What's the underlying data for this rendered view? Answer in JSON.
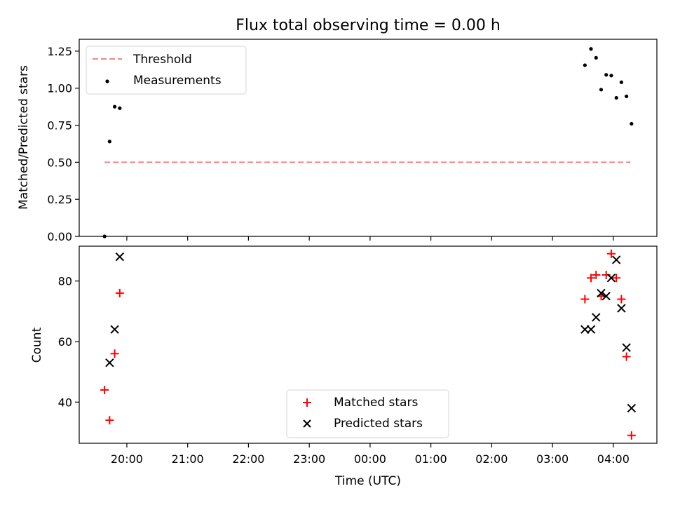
{
  "title": "Flux total observing time = 0.00 h",
  "chart_data": [
    {
      "type": "scatter",
      "panel": "top",
      "title": "Flux total observing time = 0.00 h",
      "xlabel": "",
      "ylabel": "Matched/Predicted stars",
      "xlim": [
        "19:13",
        "04:43"
      ],
      "ylim": [
        0.0,
        1.33
      ],
      "yticks": [
        "0.00",
        "0.25",
        "0.50",
        "0.75",
        "1.00",
        "1.25"
      ],
      "legend_position": "top-left",
      "series": [
        {
          "name": "Threshold",
          "kind": "line",
          "style": "dashed",
          "color": "#ff7f7f",
          "x": [
            "19:38",
            "04:17"
          ],
          "y": [
            0.5,
            0.5
          ]
        },
        {
          "name": "Measurements",
          "kind": "scatter",
          "marker": "dot",
          "color": "#000000",
          "x": [
            "19:38",
            "19:43",
            "19:48",
            "19:53",
            "03:32",
            "03:38",
            "03:43",
            "03:48",
            "03:53",
            "03:58",
            "04:03",
            "04:08",
            "04:13",
            "04:18"
          ],
          "y": [
            0.0,
            0.64,
            0.875,
            0.865,
            1.155,
            1.265,
            1.205,
            0.99,
            1.09,
            1.085,
            0.935,
            1.04,
            0.945,
            0.76
          ]
        }
      ]
    },
    {
      "type": "scatter",
      "panel": "bottom",
      "title": "",
      "xlabel": "Time (UTC)",
      "ylabel": "Count",
      "xlim": [
        "19:13",
        "04:43"
      ],
      "ylim": [
        26.4,
        91.5
      ],
      "yticks": [
        "40",
        "60",
        "80"
      ],
      "xticks": [
        "20:00",
        "21:00",
        "22:00",
        "23:00",
        "00:00",
        "01:00",
        "02:00",
        "03:00",
        "04:00"
      ],
      "legend_position": "lower center",
      "series": [
        {
          "name": "Matched stars",
          "kind": "scatter",
          "marker": "plus",
          "color": "#ff0000",
          "x": [
            "19:38",
            "19:43",
            "19:48",
            "19:53",
            "03:32",
            "03:38",
            "03:43",
            "03:48",
            "03:53",
            "03:58",
            "04:03",
            "04:08",
            "04:13",
            "04:18"
          ],
          "y": [
            44,
            34,
            56,
            76,
            74,
            81,
            82,
            75,
            82,
            89,
            81,
            74,
            55,
            29
          ]
        },
        {
          "name": "Predicted stars",
          "kind": "scatter",
          "marker": "x",
          "color": "#000000",
          "x": [
            "19:48",
            "19:43",
            "19:53",
            "03:32",
            "03:38",
            "03:43",
            "03:48",
            "03:53",
            "03:58",
            "04:03",
            "04:08",
            "04:13",
            "04:18"
          ],
          "y": [
            64,
            53,
            88,
            64,
            64,
            68,
            76,
            75,
            81,
            87,
            71,
            58,
            38
          ]
        }
      ]
    }
  ]
}
